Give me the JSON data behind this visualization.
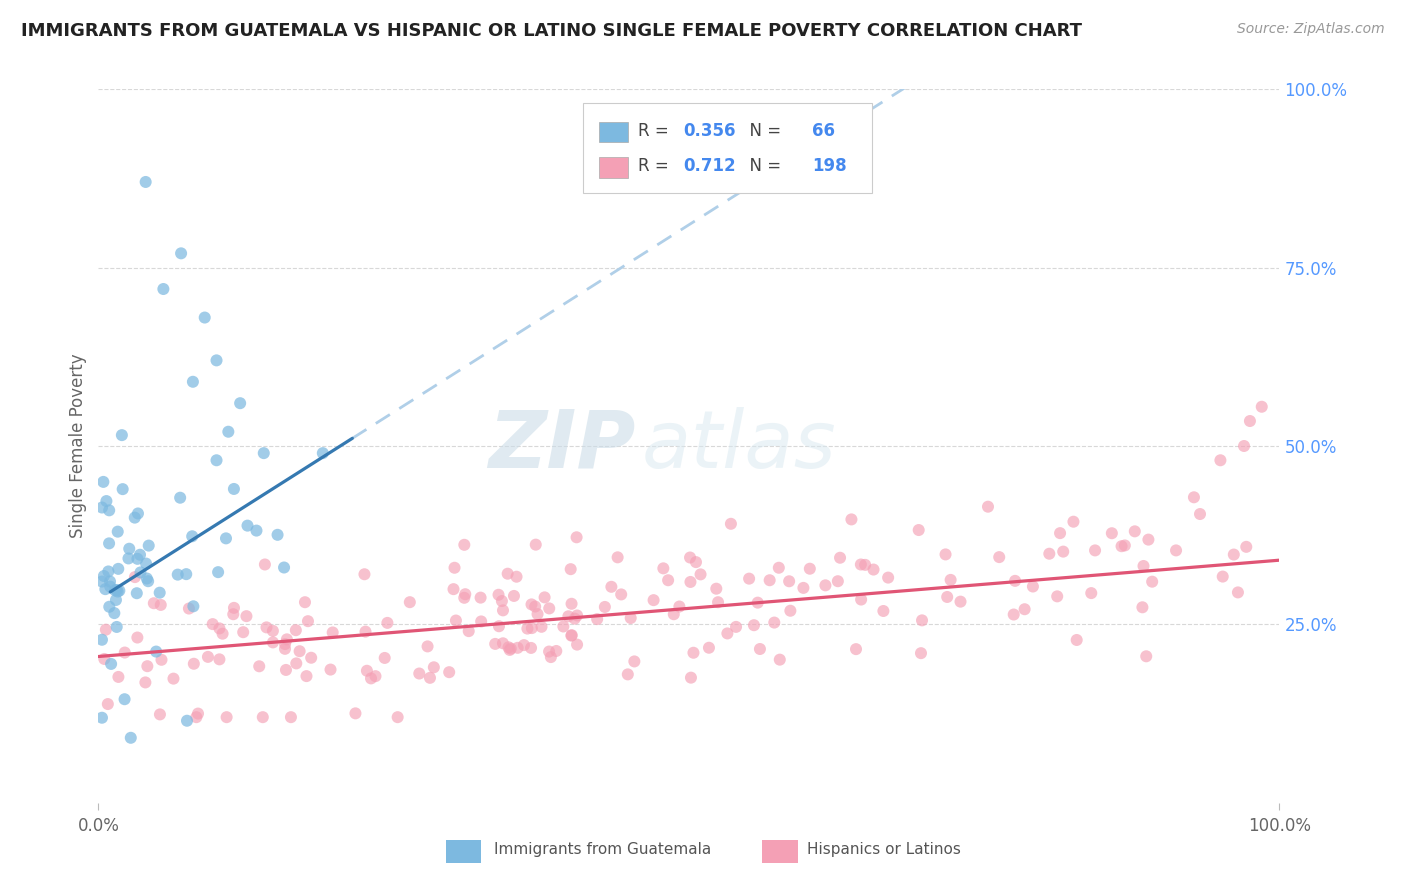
{
  "title": "IMMIGRANTS FROM GUATEMALA VS HISPANIC OR LATINO SINGLE FEMALE POVERTY CORRELATION CHART",
  "source_text": "Source: ZipAtlas.com",
  "ylabel": "Single Female Poverty",
  "xlim": [
    0,
    1
  ],
  "ylim": [
    0,
    1
  ],
  "blue_R": 0.356,
  "blue_N": 66,
  "pink_R": 0.712,
  "pink_N": 198,
  "blue_color": "#7db9e0",
  "pink_color": "#f4a0b5",
  "blue_line_color": "#3579b1",
  "pink_line_color": "#e05575",
  "dashed_line_color": "#b0cfe8",
  "legend_label_blue": "Immigrants from Guatemala",
  "legend_label_pink": "Hispanics or Latinos",
  "watermark_zip": "ZIP",
  "watermark_atlas": "atlas",
  "background_color": "#ffffff",
  "grid_color": "#d8d8d8",
  "title_color": "#222222",
  "axis_label_color": "#666666",
  "right_tick_color": "#5599ff",
  "legend_value_color": "#4488ee",
  "source_color": "#999999"
}
